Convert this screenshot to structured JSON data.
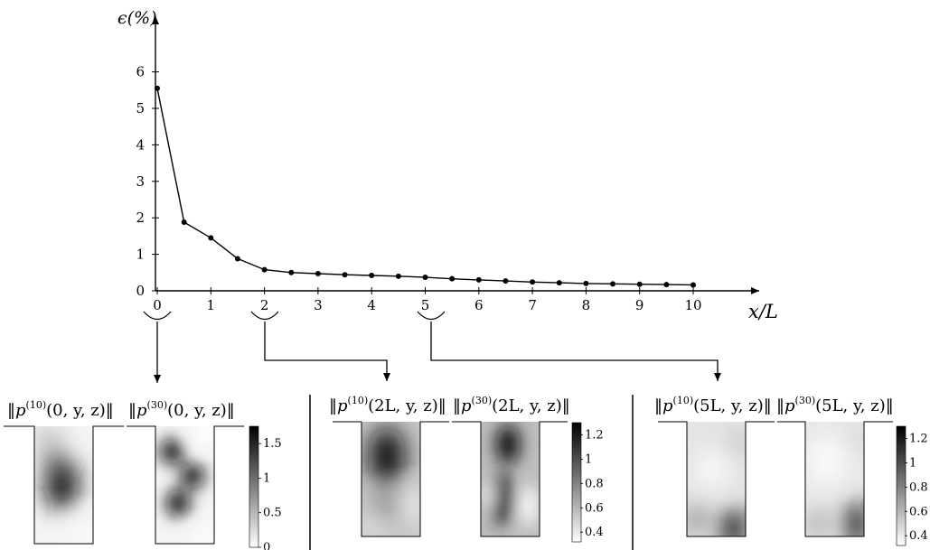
{
  "chart_data": [
    {
      "type": "line",
      "ylabel": "ϵ(%)",
      "xlabel": "x/L",
      "xlim": [
        0,
        10.5
      ],
      "ylim": [
        0,
        7
      ],
      "xticks": [
        "0",
        "1",
        "2",
        "3",
        "4",
        "5",
        "6",
        "7",
        "8",
        "9",
        "10"
      ],
      "yticks": [
        "0",
        "1",
        "2",
        "3",
        "4",
        "5",
        "6"
      ],
      "x": [
        0,
        0.5,
        1,
        1.5,
        2,
        2.5,
        3,
        3.5,
        4,
        4.5,
        5,
        5.5,
        6,
        6.5,
        7,
        7.5,
        8,
        8.5,
        9,
        9.5,
        10
      ],
      "y": [
        5.55,
        1.88,
        1.45,
        0.88,
        0.58,
        0.5,
        0.47,
        0.44,
        0.42,
        0.4,
        0.37,
        0.33,
        0.3,
        0.27,
        0.24,
        0.22,
        0.2,
        0.19,
        0.18,
        0.17,
        0.16
      ],
      "highlight_x": [
        0,
        2,
        5
      ]
    },
    {
      "type": "heatmap",
      "position": "x/L = 0",
      "panels": [
        {
          "label_prefix": "p",
          "label_sup": "(10)",
          "label_args": "(0, y, z)"
        },
        {
          "label_prefix": "p",
          "label_sup": "(30)",
          "label_args": "(0, y, z)"
        }
      ],
      "colorbar": {
        "ticks": [
          "1.5",
          "1",
          "0.5",
          "0"
        ],
        "tick_values": [
          1.5,
          1.0,
          0.5,
          0.0
        ],
        "range": [
          0,
          1.75
        ]
      }
    },
    {
      "type": "heatmap",
      "position": "x/L = 2",
      "panels": [
        {
          "label_prefix": "p",
          "label_sup": "(10)",
          "label_args": "(2L, y, z)"
        },
        {
          "label_prefix": "p",
          "label_sup": "(30)",
          "label_args": "(2L, y, z)"
        }
      ],
      "colorbar": {
        "ticks": [
          "1.2",
          "1",
          "0.8",
          "0.6",
          "0.4"
        ],
        "tick_values": [
          1.2,
          1.0,
          0.8,
          0.6,
          0.4
        ],
        "range": [
          0.32,
          1.3
        ]
      }
    },
    {
      "type": "heatmap",
      "position": "x/L = 5",
      "panels": [
        {
          "label_prefix": "p",
          "label_sup": "(10)",
          "label_args": "(5L, y, z)"
        },
        {
          "label_prefix": "p",
          "label_sup": "(30)",
          "label_args": "(5L, y, z)"
        }
      ],
      "colorbar": {
        "ticks": [
          "1.2",
          "1",
          "0.8",
          "0.6",
          "0.4"
        ],
        "tick_values": [
          1.2,
          1.0,
          0.8,
          0.6,
          0.4
        ],
        "range": [
          0.32,
          1.3
        ]
      }
    }
  ],
  "colors": {
    "line": "#000000",
    "background": "#ffffff"
  }
}
